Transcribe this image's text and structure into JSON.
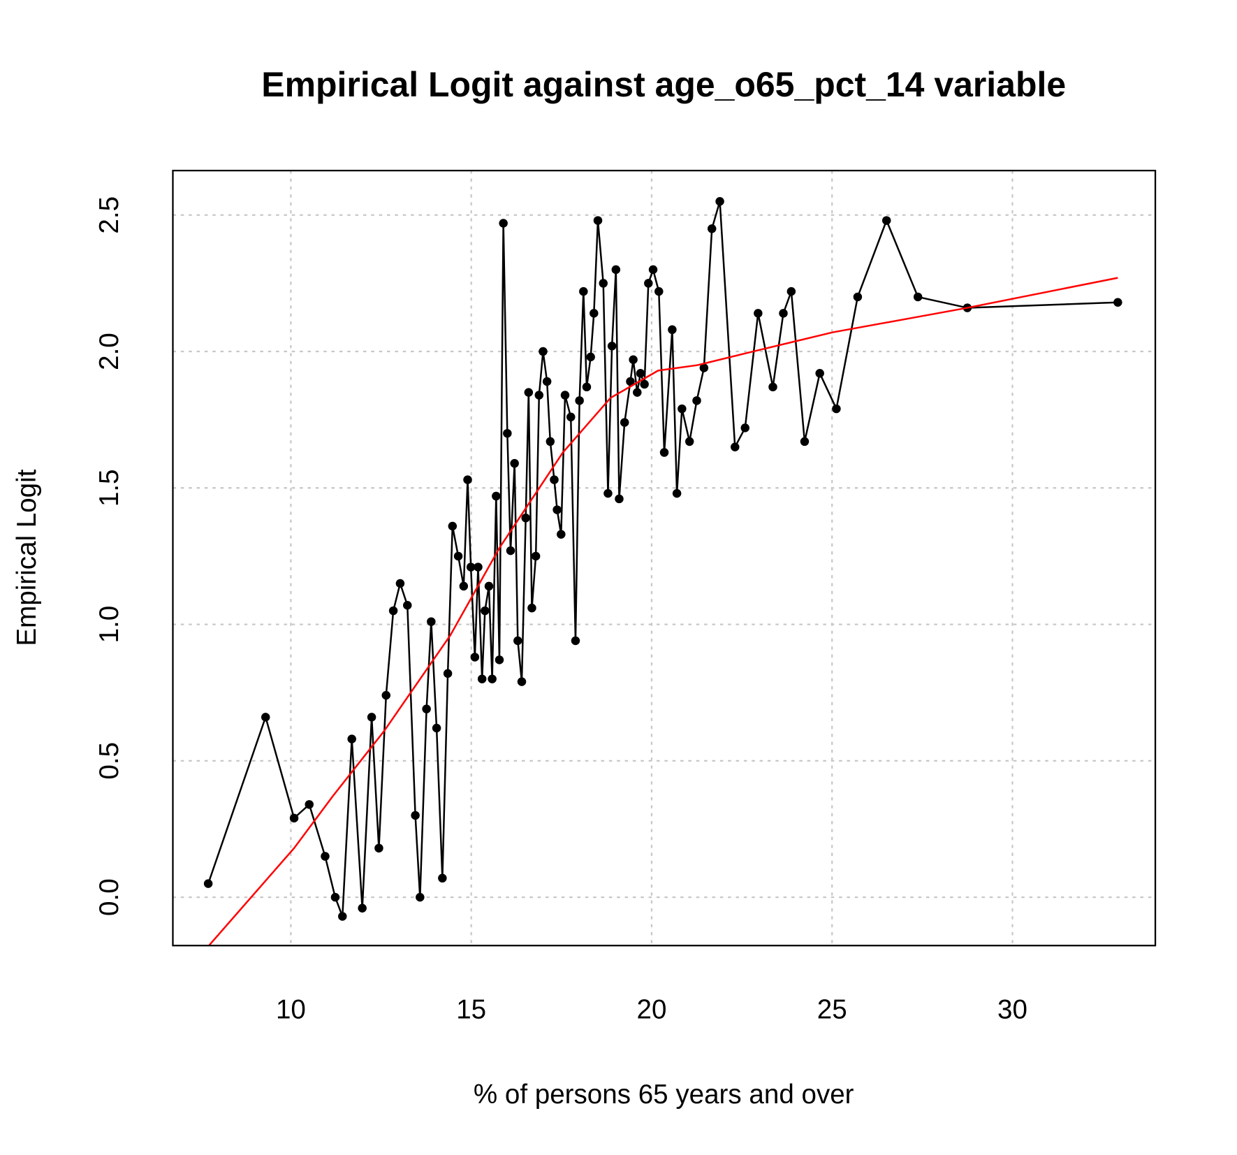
{
  "chart_data": {
    "type": "line",
    "title": "Empirical Logit against age_o65_pct_14 variable",
    "xlabel": "% of persons 65 years and over",
    "ylabel": "Empirical Logit",
    "x": [
      7.71,
      9.3,
      10.09,
      10.51,
      10.95,
      11.23,
      11.43,
      11.69,
      11.98,
      12.24,
      12.44,
      12.64,
      12.84,
      13.03,
      13.23,
      13.45,
      13.58,
      13.76,
      13.89,
      14.04,
      14.2,
      14.35,
      14.48,
      14.64,
      14.79,
      14.9,
      14.99,
      15.1,
      15.19,
      15.3,
      15.38,
      15.49,
      15.58,
      15.69,
      15.78,
      15.89,
      16.0,
      16.09,
      16.2,
      16.29,
      16.4,
      16.51,
      16.59,
      16.68,
      16.79,
      16.88,
      16.99,
      17.1,
      17.19,
      17.3,
      17.38,
      17.49,
      17.6,
      17.76,
      17.89,
      18.0,
      18.11,
      18.2,
      18.31,
      18.4,
      18.51,
      18.66,
      18.79,
      18.9,
      19.01,
      19.1,
      19.25,
      19.41,
      19.49,
      19.6,
      19.69,
      19.8,
      19.91,
      20.04,
      20.2,
      20.35,
      20.57,
      20.7,
      20.84,
      21.05,
      21.25,
      21.45,
      21.67,
      21.89,
      22.31,
      22.59,
      22.95,
      23.36,
      23.65,
      23.87,
      24.24,
      24.66,
      25.12,
      25.71,
      26.51,
      27.38,
      28.75,
      32.92
    ],
    "series": [
      {
        "color": "#000000",
        "values": [
          0.05,
          0.66,
          0.29,
          0.34,
          0.15,
          0.0,
          -0.07,
          0.58,
          -0.04,
          0.66,
          0.18,
          0.74,
          1.05,
          1.15,
          1.07,
          0.3,
          0.0,
          0.69,
          1.01,
          0.62,
          0.07,
          0.82,
          1.36,
          1.25,
          1.14,
          1.53,
          1.21,
          0.88,
          1.21,
          0.8,
          1.05,
          1.14,
          0.8,
          1.47,
          0.87,
          2.47,
          1.7,
          1.27,
          1.59,
          0.94,
          0.79,
          1.39,
          1.85,
          1.06,
          1.25,
          1.84,
          2.0,
          1.89,
          1.67,
          1.53,
          1.42,
          1.33,
          1.84,
          1.76,
          0.94,
          1.82,
          2.22,
          1.87,
          1.98,
          2.14,
          2.48,
          2.25,
          1.48,
          2.02,
          2.3,
          1.46,
          1.74,
          1.89,
          1.97,
          1.85,
          1.92,
          1.88,
          2.25,
          2.3,
          2.22,
          1.63,
          2.08,
          1.48,
          1.79,
          1.67,
          1.82,
          1.94,
          2.45,
          2.55,
          1.65,
          1.72,
          2.14,
          1.87,
          2.14,
          2.22,
          1.67,
          1.92,
          1.79,
          2.2,
          2.48,
          2.2,
          2.16,
          2.18
        ]
      },
      {
        "color": "#ff0000",
        "x": [
          7.71,
          10.09,
          11.16,
          12.59,
          14.42,
          15.78,
          17.54,
          18.86,
          20.18,
          21.27,
          22.81,
          25.01,
          28.75,
          32.92
        ],
        "values": [
          -0.18,
          0.18,
          0.37,
          0.61,
          0.96,
          1.28,
          1.63,
          1.83,
          1.93,
          1.95,
          2.0,
          2.07,
          2.16,
          2.27
        ]
      }
    ],
    "xlim": [
      6.73,
      33.96
    ],
    "ylim": [
      -0.177,
      2.663
    ],
    "xticks": [
      10,
      15,
      20,
      25,
      30
    ],
    "yticks": [
      {
        "value": 0,
        "label": "0.0"
      },
      0.5,
      {
        "value": 1,
        "label": "1.0"
      },
      1.5,
      {
        "value": 2,
        "label": "2.0"
      },
      2.5
    ],
    "grid": true
  }
}
